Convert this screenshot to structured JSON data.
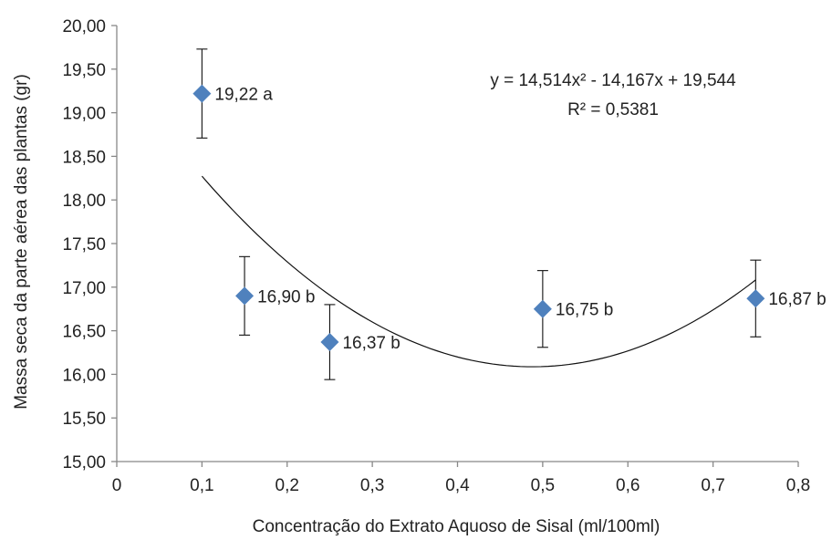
{
  "chart_data": {
    "type": "scatter",
    "xlabel": "Concentração do Extrato Aquoso de Sisal (ml/100ml)",
    "ylabel": "Massa seca da parte aérea das plantas (gr)",
    "xlim": [
      0,
      0.8
    ],
    "ylim": [
      15,
      20
    ],
    "x_ticks": [
      "0",
      "0,1",
      "0,2",
      "0,3",
      "0,4",
      "0,5",
      "0,6",
      "0,7",
      "0,8"
    ],
    "y_ticks": [
      "15,00",
      "15,50",
      "16,00",
      "16,50",
      "17,00",
      "17,50",
      "18,00",
      "18,50",
      "19,00",
      "19,50",
      "20,00"
    ],
    "grid": false,
    "marker_color": "#4f81bd",
    "points": [
      {
        "x": 0.1,
        "y": 19.22,
        "err": 0.51,
        "label": "19,22 a"
      },
      {
        "x": 0.15,
        "y": 16.9,
        "err": 0.45,
        "label": "16,90 b"
      },
      {
        "x": 0.25,
        "y": 16.37,
        "err": 0.43,
        "label": "16,37 b"
      },
      {
        "x": 0.5,
        "y": 16.75,
        "err": 0.44,
        "label": "16,75 b"
      },
      {
        "x": 0.75,
        "y": 16.87,
        "err": 0.44,
        "label": "16,87 b"
      }
    ],
    "trendline": {
      "type": "polynomial",
      "coefficients": [
        14.514,
        -14.167,
        19.544
      ],
      "x_range": [
        0.1,
        0.75
      ],
      "equation": "y = 14,514x² - 14,167x + 19,544",
      "r_squared": "R² = 0,5381"
    }
  }
}
